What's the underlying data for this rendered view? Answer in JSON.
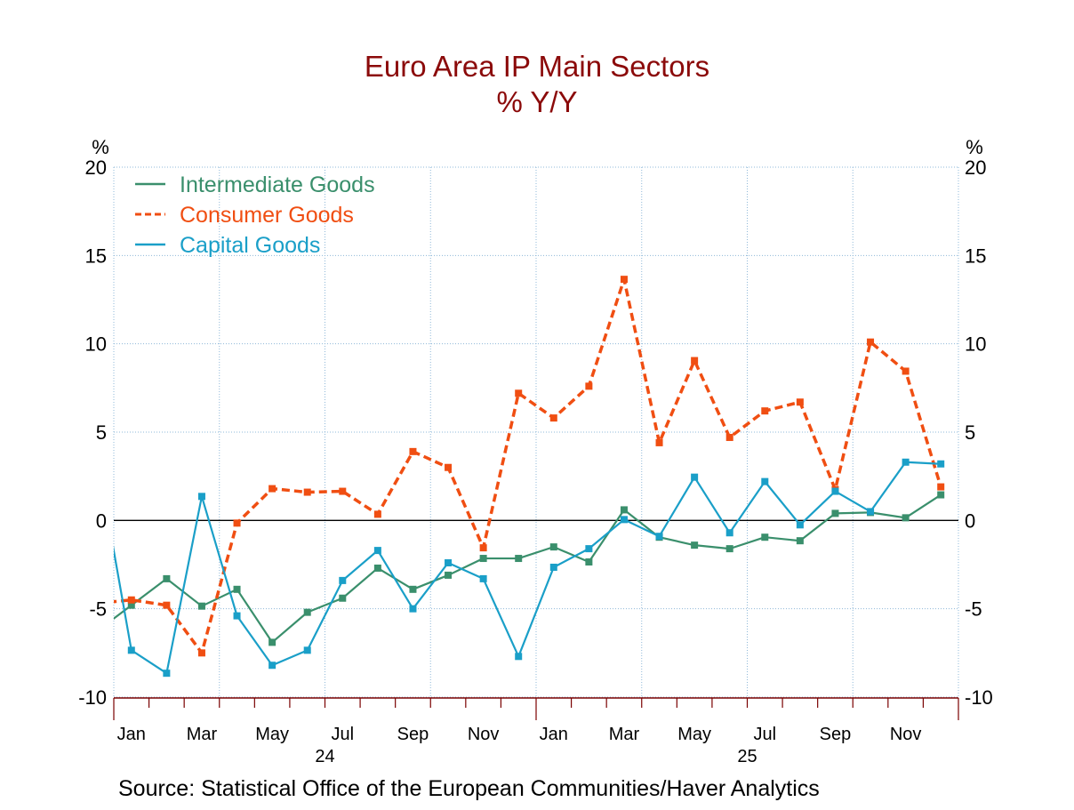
{
  "chart_data": {
    "type": "line",
    "title": "Euro Area IP Main Sectors",
    "subtitle": "% Y/Y",
    "ylabel_left": "%",
    "ylabel_right": "%",
    "ylim": [
      -10,
      20
    ],
    "yticks": [
      -10,
      -5,
      0,
      5,
      10,
      15,
      20
    ],
    "xlim": [
      "2024-01",
      "2025-12"
    ],
    "x_tick_labels": [
      "Jan",
      "Mar",
      "May",
      "Jul",
      "Sep",
      "Nov",
      "Jan",
      "Mar",
      "May",
      "Jul",
      "Sep",
      "Nov"
    ],
    "year_labels": [
      "24",
      "25"
    ],
    "grid": true,
    "legend_position": "top-left",
    "x": [
      "2023-12",
      "2024-01",
      "2024-02",
      "2024-03",
      "2024-04",
      "2024-05",
      "2024-06",
      "2024-07",
      "2024-08",
      "2024-09",
      "2024-10",
      "2024-11",
      "2024-12",
      "2025-01",
      "2025-02",
      "2025-03",
      "2025-04",
      "2025-05",
      "2025-06",
      "2025-07",
      "2025-08",
      "2025-09",
      "2025-10",
      "2025-11",
      "2025-12"
    ],
    "series": [
      {
        "name": "Intermediate Goods",
        "color": "#3a8f6c",
        "style": "solid",
        "values": [
          -6.3,
          -4.8,
          -3.3,
          -4.85,
          -3.9,
          -6.9,
          -5.2,
          -4.4,
          -2.7,
          -3.9,
          -3.1,
          -2.15,
          -2.15,
          -1.5,
          -2.35,
          0.6,
          -0.95,
          -1.4,
          -1.6,
          -0.95,
          -1.15,
          0.4,
          0.45,
          0.15,
          1.45
        ]
      },
      {
        "name": "Consumer Goods",
        "color": "#f04e12",
        "style": "dashed",
        "values": [
          -4.7,
          -4.5,
          -4.8,
          -7.5,
          -0.15,
          1.8,
          1.6,
          1.65,
          0.35,
          3.9,
          3.0,
          -1.55,
          7.2,
          5.8,
          7.6,
          13.65,
          4.4,
          9.05,
          4.7,
          6.2,
          6.7,
          1.75,
          10.1,
          8.45,
          1.9
        ]
      },
      {
        "name": "Capital Goods",
        "color": "#1a9fc8",
        "style": "solid",
        "values": [
          3.9,
          -7.35,
          -8.65,
          1.36,
          -5.4,
          -8.2,
          -7.35,
          -3.4,
          -1.7,
          -5.0,
          -2.4,
          -3.3,
          -7.7,
          -2.65,
          -1.6,
          0.05,
          -0.9,
          2.45,
          -0.7,
          2.2,
          -0.25,
          1.65,
          0.5,
          3.3,
          3.2
        ]
      }
    ],
    "source": "Source:  Statistical Office of the European Communities/Haver Analytics"
  },
  "colors": {
    "title": "#8b0a0a",
    "grid": "#8fb8d8",
    "axis": "#7a0000"
  }
}
